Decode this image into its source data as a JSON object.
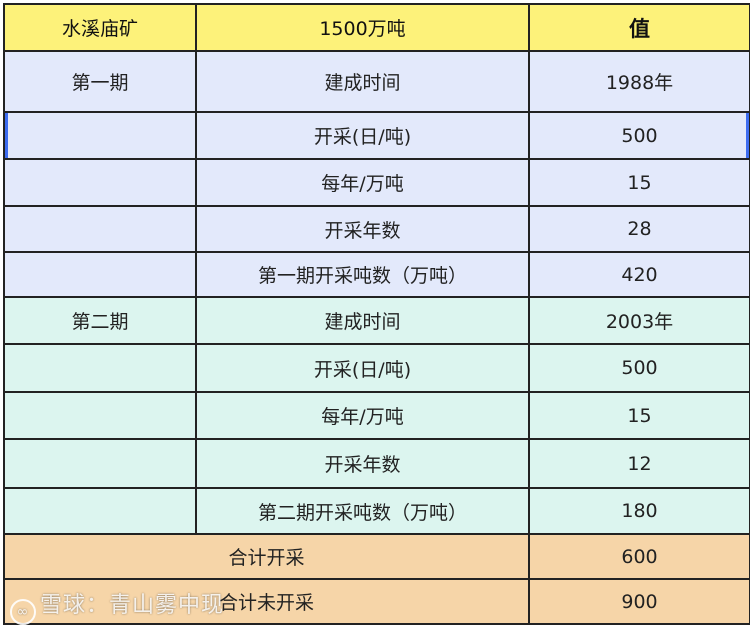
{
  "header": {
    "col1": "水溪庙矿",
    "col2": "1500万吨",
    "col3": "值"
  },
  "phase1": {
    "label": "第一期",
    "rows": [
      {
        "item": "建成时间",
        "value": "1988年"
      },
      {
        "item": "开采(日/吨)",
        "value": "500"
      },
      {
        "item": "每年/万吨",
        "value": "15"
      },
      {
        "item": "开采年数",
        "value": "28"
      },
      {
        "item": "第一期开采吨数（万吨）",
        "value": "420"
      }
    ]
  },
  "phase2": {
    "label": "第二期",
    "rows": [
      {
        "item": "建成时间",
        "value": "2003年"
      },
      {
        "item": "开采(日/吨)",
        "value": "500"
      },
      {
        "item": "每年/万吨",
        "value": "15"
      },
      {
        "item": "开采年数",
        "value": "12"
      },
      {
        "item": "第二期开采吨数（万吨）",
        "value": "180"
      }
    ]
  },
  "totals": [
    {
      "label": "合计开采",
      "value": "600"
    },
    {
      "label": "合计未开采",
      "value": "900"
    }
  ],
  "watermark": "雪球：青山雾中现",
  "colors": {
    "header": "#fdf27a",
    "phase1": "#e3e9fb",
    "phase2": "#dcf5ef",
    "totals": "#f6d5a8",
    "selection": "#3d6cf0"
  }
}
